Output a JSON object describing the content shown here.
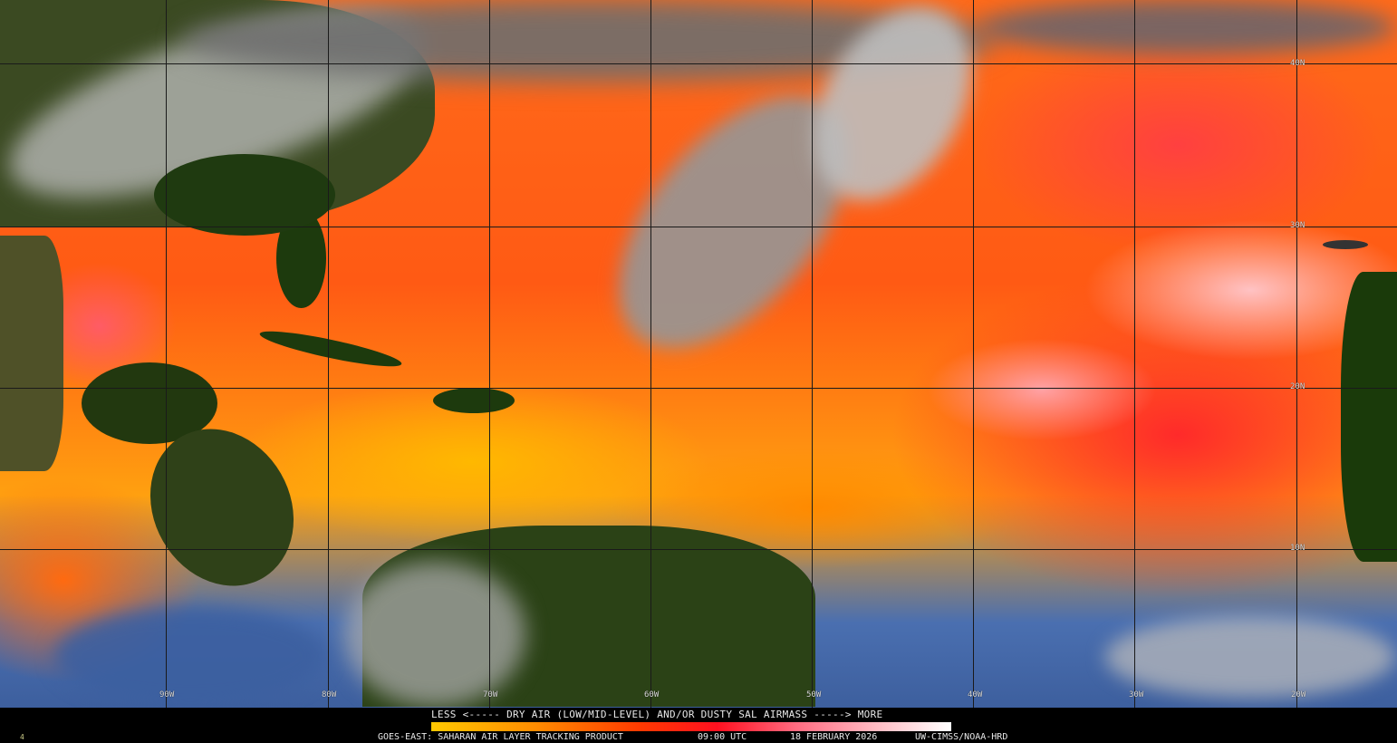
{
  "map": {
    "latitude_labels": [
      "40N",
      "30N",
      "20N",
      "10N"
    ],
    "longitude_labels": [
      "90W",
      "80W",
      "70W",
      "60W",
      "50W",
      "40W",
      "30W",
      "20W"
    ]
  },
  "legend": {
    "scale_title": "LESS <----- DRY AIR (LOW/MID-LEVEL) AND/OR DUSTY SAL AIRMASS -----> MORE",
    "colors": [
      "#ffc800",
      "#ff8c00",
      "#ff3a00",
      "#ff1020",
      "#ff6a80",
      "#ffb8c0",
      "#ffffff"
    ]
  },
  "footer": {
    "product": "GOES-EAST: SAHARAN AIR LAYER TRACKING PRODUCT",
    "time": "09:00 UTC",
    "date": "18 FEBRUARY 2026",
    "credit": "UW-CIMSS/NOAA-HRD",
    "corner_mark": "4"
  }
}
